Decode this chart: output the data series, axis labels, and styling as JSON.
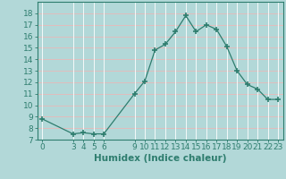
{
  "x_vals": [
    0,
    3,
    4,
    5,
    6,
    9,
    10,
    11,
    12,
    13,
    14,
    15,
    16,
    17,
    18,
    19,
    20,
    21,
    22,
    23
  ],
  "y_vals": [
    8.8,
    7.5,
    7.6,
    7.5,
    7.5,
    11.0,
    12.1,
    14.8,
    15.3,
    16.4,
    17.8,
    16.4,
    17.0,
    16.6,
    15.1,
    13.0,
    11.8,
    11.4,
    10.5,
    10.5
  ],
  "xlabel": "Humidex (Indice chaleur)",
  "xlim": [
    -0.5,
    23.5
  ],
  "ylim": [
    7,
    19
  ],
  "xticks": [
    0,
    3,
    4,
    5,
    6,
    9,
    10,
    11,
    12,
    13,
    14,
    15,
    16,
    17,
    18,
    19,
    20,
    21,
    22,
    23
  ],
  "yticks": [
    7,
    8,
    9,
    10,
    11,
    12,
    13,
    14,
    15,
    16,
    17,
    18
  ],
  "line_color": "#2e7d6e",
  "bg_color": "#b2d8d8",
  "grid_major_color": "#e8c8c8",
  "grid_minor_color": "#ffffff",
  "xlabel_fontsize": 7.5,
  "tick_fontsize": 6.5
}
